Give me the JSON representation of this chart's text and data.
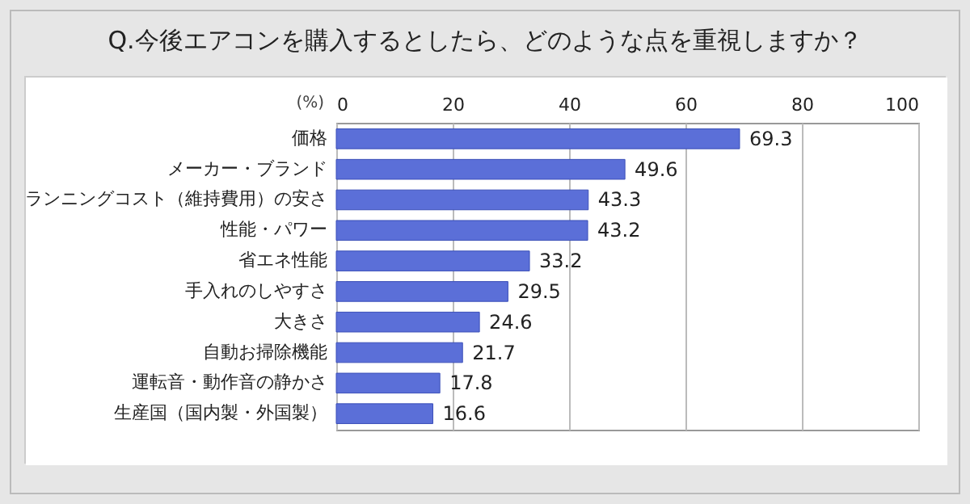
{
  "chart_data": {
    "type": "bar",
    "orientation": "horizontal",
    "title": "Q.今後エアコンを購入するとしたら、どのような点を重視しますか？",
    "xlabel": "(%)",
    "categories": [
      "価格",
      "メーカー・ブランド",
      "ランニングコスト（維持費用）の安さ",
      "性能・パワー",
      "省エネ性能",
      "手入れのしやすさ",
      "大きさ",
      "自動お掃除機能",
      "運転音・動作音の静かさ",
      "生産国（国内製・外国製）"
    ],
    "values": [
      69.3,
      49.6,
      43.3,
      43.2,
      33.2,
      29.5,
      24.6,
      21.7,
      17.8,
      16.6
    ],
    "color": "#5b6fd8",
    "xlim": [
      0,
      100
    ],
    "xticks": [
      0,
      20,
      40,
      60,
      80,
      100
    ],
    "grid": "x",
    "data_labels": true
  }
}
